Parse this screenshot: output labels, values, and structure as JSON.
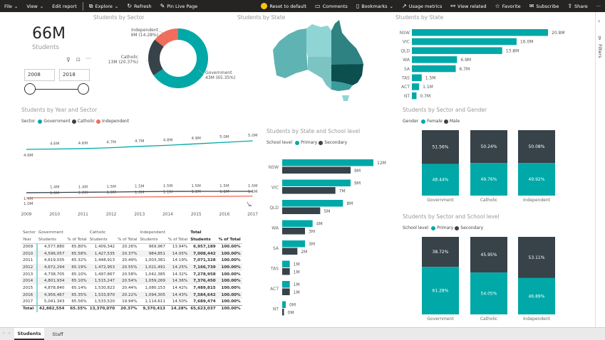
{
  "colors": {
    "government": "#01A8A8",
    "catholic": "#374249",
    "independent": "#F26B5B",
    "primary": "#01A8A8",
    "secondary": "#374249"
  },
  "toolbar": {
    "file": "File",
    "view": "View",
    "edit_report": "Edit report",
    "explore": "Explore",
    "refresh": "Refresh",
    "pin": "Pin Live Page",
    "reset": "Reset to default",
    "comments": "Comments",
    "bookmarks": "Bookmarks",
    "usage": "Usage metrics",
    "view_related": "View related",
    "favorite": "Favorite",
    "subscribe": "Subscribe",
    "share": "Share",
    "more": "···"
  },
  "filters_label": "Filters",
  "kpi": {
    "value": "66M",
    "label": "Students"
  },
  "slicer": {
    "from": "2008",
    "to": "2018"
  },
  "donut": {
    "title": "Students by Sector",
    "slices": [
      {
        "name": "Government",
        "label": "Government",
        "value_label": "43M (65.35%)",
        "pct": 65.35
      },
      {
        "name": "Catholic",
        "label": "Catholic",
        "value_label": "13M (20.37%)",
        "pct": 20.37
      },
      {
        "name": "Independent",
        "label": "Independent",
        "value_label": "9M (14.28%)",
        "pct": 14.28
      }
    ]
  },
  "map": {
    "title": "Students by State"
  },
  "state_bar": {
    "title": "Students by State",
    "categories": [
      "NSW",
      "VIC",
      "QLD",
      "WA",
      "SA",
      "TAS",
      "ACT",
      "NT"
    ],
    "values": [
      20.8,
      16.0,
      13.8,
      6.9,
      6.7,
      1.5,
      1.1,
      0.7
    ],
    "labels": [
      "20.8M",
      "16.0M",
      "13.8M",
      "6.9M",
      "6.7M",
      "1.5M",
      "1.1M",
      "0.7M"
    ]
  },
  "line": {
    "title": "Students by Year and Sector",
    "legend_title": "Sector",
    "legend": [
      "Government",
      "Catholic",
      "Independent"
    ],
    "years": [
      "2009",
      "2010",
      "2011",
      "2012",
      "2013",
      "2014",
      "2015",
      "2016",
      "2017"
    ],
    "series": [
      {
        "name": "Government",
        "values": [
          4.58,
          4.6,
          4.62,
          4.67,
          4.74,
          4.8,
          4.88,
          4.96,
          5.04
        ],
        "labels": [
          "4.6M",
          "4.6M",
          "4.6M",
          "4.7M",
          "4.7M",
          "4.8M",
          "4.9M",
          "5.0M",
          "5.0M"
        ]
      },
      {
        "name": "Catholic",
        "values": [
          1.41,
          1.43,
          1.45,
          1.47,
          1.5,
          1.52,
          1.53,
          1.53,
          1.53
        ],
        "labels": [
          "1.4M",
          "1.4M",
          "1.4M",
          "1.5M",
          "1.5M",
          "1.5M",
          "1.5M",
          "1.5M",
          "1.5M"
        ]
      },
      {
        "name": "Independent",
        "values": [
          0.97,
          0.98,
          1.0,
          1.02,
          1.04,
          1.06,
          1.08,
          1.09,
          1.11
        ],
        "labels": [
          "1.0M",
          "1.0M",
          "1.0M",
          "1.0M",
          "1.0M",
          "1.1M",
          "1.1M",
          "1.1M",
          "1.1M"
        ]
      }
    ]
  },
  "table": {
    "header1": [
      "Sector",
      "Government",
      "",
      "Catholic",
      "",
      "Independent",
      "",
      "Total",
      ""
    ],
    "header2": [
      "Year",
      "Students",
      "% of Total",
      "Students",
      "% of Total",
      "Students",
      "% of Total",
      "Students",
      "% of Total"
    ],
    "rows": [
      [
        "2009",
        "4,577,880",
        "65.80%",
        "1,409,342",
        "20.26%",
        "969,967",
        "13.94%",
        "6,957,189",
        "100.00%"
      ],
      [
        "2010",
        "4,596,057",
        "65.58%",
        "1,427,535",
        "20.37%",
        "984,851",
        "14.05%",
        "7,008,442",
        "100.00%"
      ],
      [
        "2011",
        "4,619,035",
        "65.32%",
        "1,448,913",
        "20.49%",
        "1,003,381",
        "14.19%",
        "7,071,328",
        "100.00%"
      ],
      [
        "2012",
        "4,672,294",
        "65.19%",
        "1,472,953",
        "20.55%",
        "1,021,491",
        "14.25%",
        "7,166,739",
        "100.00%"
      ],
      [
        "2013",
        "4,738,705",
        "65.10%",
        "1,497,867",
        "20.58%",
        "1,042,385",
        "14.32%",
        "7,278,958",
        "100.00%"
      ],
      [
        "2014",
        "4,801,934",
        "65.10%",
        "1,515,247",
        "20.54%",
        "1,059,269",
        "14.36%",
        "7,376,450",
        "100.00%"
      ],
      [
        "2015",
        "4,878,840",
        "65.14%",
        "1,530,823",
        "20.44%",
        "1,080,153",
        "14.42%",
        "7,489,815",
        "100.00%"
      ],
      [
        "2016",
        "4,956,467",
        "65.35%",
        "1,533,870",
        "20.22%",
        "1,094,305",
        "14.43%",
        "7,584,642",
        "100.00%"
      ],
      [
        "2017",
        "5,041,343",
        "65.56%",
        "1,533,520",
        "19.94%",
        "1,114,611",
        "14.50%",
        "7,689,474",
        "100.00%"
      ]
    ],
    "total": [
      "Total",
      "42,882,554",
      "65.35%",
      "13,370,070",
      "20.37%",
      "9,370,413",
      "14.28%",
      "65,623,037",
      "100.00%"
    ]
  },
  "school_bar": {
    "title": "Students by State and School level",
    "legend_title": "School level",
    "legend": [
      "Primary",
      "Secondary"
    ],
    "categories": [
      "NSW",
      "VIC",
      "QLD",
      "WA",
      "SA",
      "TAS",
      "ACT",
      "NT"
    ],
    "primary": [
      12,
      9,
      8,
      4,
      3,
      1,
      1,
      0.4
    ],
    "secondary": [
      9,
      7,
      5,
      3,
      2,
      1,
      1,
      0.2
    ],
    "primary_labels": [
      "12M",
      "9M",
      "8M",
      "4M",
      "3M",
      "1M",
      "1M",
      "0M"
    ],
    "secondary_labels": [
      "9M",
      "7M",
      "5M",
      "3M",
      "2M",
      "1M",
      "1M",
      "0M"
    ]
  },
  "gender": {
    "title": "Students by Sector and Gender",
    "legend_title": "Gender",
    "legend": [
      "Female",
      "Male"
    ],
    "categories": [
      "Government",
      "Catholic",
      "Independent"
    ],
    "bottom": [
      48.44,
      49.76,
      49.92
    ],
    "top": [
      51.56,
      50.24,
      50.08
    ],
    "bottom_labels": [
      "48.44%",
      "49.76%",
      "49.92%"
    ],
    "top_labels": [
      "51.56%",
      "50.24%",
      "50.08%"
    ]
  },
  "level": {
    "title": "Students by Sector and School level",
    "legend_title": "School level",
    "legend": [
      "Primary",
      "Secondary"
    ],
    "categories": [
      "Government",
      "Catholic",
      "Independent"
    ],
    "bottom": [
      61.28,
      54.05,
      46.89
    ],
    "top": [
      38.72,
      45.95,
      53.11
    ],
    "bottom_labels": [
      "61.28%",
      "54.05%",
      "46.89%"
    ],
    "top_labels": [
      "38.72%",
      "45.95%",
      "53.11%"
    ]
  },
  "tabs": [
    "Students",
    "Staff"
  ]
}
